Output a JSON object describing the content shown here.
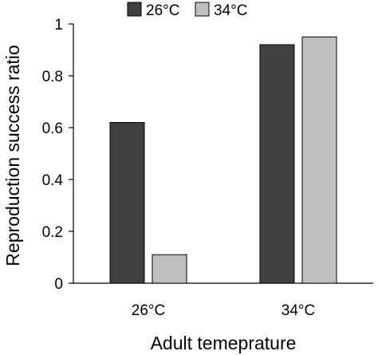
{
  "chart_data": {
    "type": "bar",
    "categories": [
      "26°C",
      "34°C"
    ],
    "series": [
      {
        "name": "26°C",
        "values": [
          0.62,
          0.92
        ],
        "color": "#404040"
      },
      {
        "name": "34°C",
        "values": [
          0.11,
          0.95
        ],
        "color": "#c0c0c0"
      }
    ],
    "xlabel": "Adult temeprature",
    "ylabel": "Reproduction success ratio",
    "ylim": [
      0,
      1
    ],
    "yticks": [
      0,
      0.2,
      0.4,
      0.6,
      0.8,
      1
    ],
    "ytick_labels": [
      "0",
      "0.2",
      "0.4",
      "0.6",
      "0.8",
      "1"
    ],
    "grid": false,
    "legend_position": "top",
    "bar_edge_color": "#000000"
  }
}
